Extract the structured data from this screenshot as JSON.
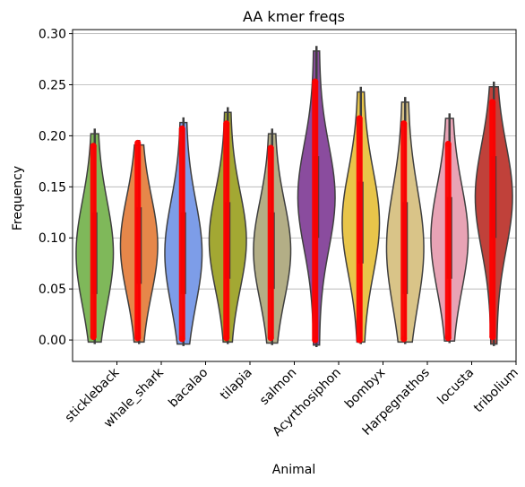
{
  "chart_data": {
    "type": "violin",
    "title": "AA kmer freqs",
    "xlabel": "Animal",
    "ylabel": "Frequency",
    "categories": [
      "stickleback",
      "whale_shark",
      "bacalao",
      "tilapia",
      "salmon",
      "Acyrthosiphon",
      "bombyx",
      "Harpegnathos",
      "locusta",
      "tribolium"
    ],
    "yticks": [
      "0.00",
      "0.05",
      "0.10",
      "0.15",
      "0.20",
      "0.25",
      "0.30"
    ],
    "ylim": [
      -0.021,
      0.304
    ],
    "grid": "horizontal",
    "colors": [
      "#7fb85a",
      "#e6874a",
      "#7d9de8",
      "#a3a833",
      "#b3ae86",
      "#8a4c9e",
      "#e8c54a",
      "#d9c488",
      "#e8a3b5",
      "#c0413a"
    ],
    "point_color": "#ff0000",
    "series": [
      {
        "name": "stickleback",
        "min": 0.003,
        "max": 0.19,
        "whisker": [
          -0.004,
          0.207
        ],
        "q1": 0.045,
        "q3": 0.125
      },
      {
        "name": "whale_shark",
        "min": 0.002,
        "max": 0.193,
        "whisker": [
          -0.004,
          0.196
        ],
        "q1": 0.055,
        "q3": 0.13
      },
      {
        "name": "bacalao",
        "min": 0.001,
        "max": 0.207,
        "whisker": [
          -0.006,
          0.218
        ],
        "q1": 0.045,
        "q3": 0.125
      },
      {
        "name": "tilapia",
        "min": 0.002,
        "max": 0.212,
        "whisker": [
          -0.004,
          0.228
        ],
        "q1": 0.06,
        "q3": 0.135
      },
      {
        "name": "salmon",
        "min": 0.002,
        "max": 0.188,
        "whisker": [
          -0.005,
          0.207
        ],
        "q1": 0.05,
        "q3": 0.125
      },
      {
        "name": "Acyrthosiphon",
        "min": 0.0,
        "max": 0.253,
        "whisker": [
          -0.007,
          0.288
        ],
        "q1": 0.1,
        "q3": 0.18
      },
      {
        "name": "bombyx",
        "min": 0.0,
        "max": 0.217,
        "whisker": [
          -0.004,
          0.248
        ],
        "q1": 0.075,
        "q3": 0.155
      },
      {
        "name": "Harpegnathos",
        "min": 0.001,
        "max": 0.212,
        "whisker": [
          -0.004,
          0.238
        ],
        "q1": 0.045,
        "q3": 0.135
      },
      {
        "name": "locusta",
        "min": 0.002,
        "max": 0.192,
        "whisker": [
          -0.003,
          0.222
        ],
        "q1": 0.06,
        "q3": 0.14
      },
      {
        "name": "tribolium",
        "min": 0.003,
        "max": 0.233,
        "whisker": [
          -0.006,
          0.253
        ],
        "q1": 0.1,
        "q3": 0.18
      }
    ]
  }
}
